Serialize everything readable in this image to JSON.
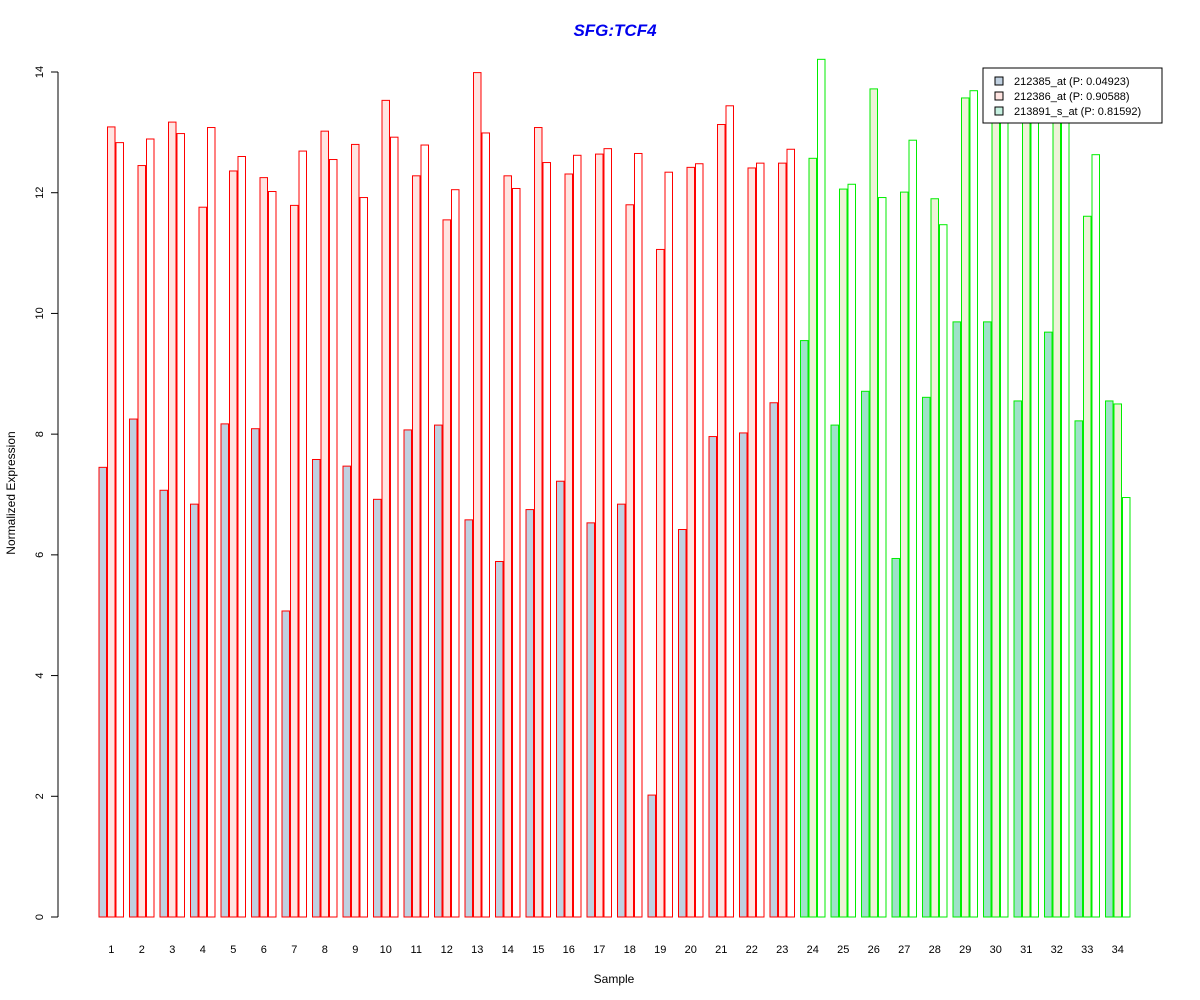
{
  "chart_data": {
    "type": "bar",
    "title": "SFG:TCF4",
    "xlabel": "Sample",
    "ylabel": "Normalized Expression",
    "ylim": [
      0,
      14
    ],
    "yticks": [
      "0",
      "2",
      "4",
      "6",
      "8",
      "10",
      "12",
      "14"
    ],
    "categories": [
      "1",
      "2",
      "3",
      "4",
      "5",
      "6",
      "7",
      "8",
      "9",
      "10",
      "11",
      "12",
      "13",
      "14",
      "15",
      "16",
      "17",
      "18",
      "19",
      "20",
      "21",
      "22",
      "23",
      "24",
      "25",
      "26",
      "27",
      "28",
      "29",
      "30",
      "31",
      "32",
      "33",
      "34"
    ],
    "group_outline_colors": {
      "group_a": "#ff0000",
      "group_b": "#00ee00"
    },
    "group_b_start_index": 23,
    "legend_position": "top-right",
    "series": [
      {
        "name": "212385_at (P: 0.04923)",
        "fill": "#c0d0e0",
        "fill_group_b": "#9ee2c8",
        "values": [
          7.45,
          8.25,
          7.07,
          6.84,
          8.17,
          8.09,
          5.07,
          7.58,
          7.47,
          6.92,
          8.07,
          8.15,
          6.58,
          5.89,
          6.75,
          7.22,
          6.53,
          6.84,
          2.02,
          6.42,
          7.96,
          8.02,
          8.52,
          9.55,
          8.15,
          8.71,
          5.94,
          8.61,
          9.86,
          9.86,
          8.55,
          9.69,
          8.22,
          8.55
        ]
      },
      {
        "name": "212386_at (P: 0.90588)",
        "fill": "#ffe4e1",
        "fill_group_b": "#eef2d8",
        "values": [
          13.09,
          12.45,
          13.17,
          11.76,
          12.36,
          12.25,
          11.79,
          13.02,
          12.8,
          13.53,
          12.28,
          11.55,
          13.99,
          12.28,
          13.08,
          12.31,
          12.64,
          11.8,
          11.06,
          12.42,
          13.13,
          12.41,
          12.49,
          12.57,
          12.06,
          13.72,
          12.01,
          11.9,
          13.57,
          13.2,
          13.2,
          13.2,
          11.61,
          8.5
        ]
      },
      {
        "name": "213891_s_at (P: 0.81592)",
        "fill": "#ffffff",
        "fill_group_b": "#ffffff",
        "values": [
          12.83,
          12.89,
          12.98,
          13.08,
          12.6,
          12.02,
          12.69,
          12.55,
          11.92,
          12.92,
          12.79,
          12.05,
          12.99,
          12.07,
          12.5,
          12.62,
          12.73,
          12.65,
          12.34,
          12.48,
          13.44,
          12.49,
          12.72,
          14.21,
          12.14,
          11.92,
          12.87,
          11.47,
          13.69,
          13.2,
          13.2,
          13.2,
          12.63,
          6.95
        ]
      }
    ]
  }
}
